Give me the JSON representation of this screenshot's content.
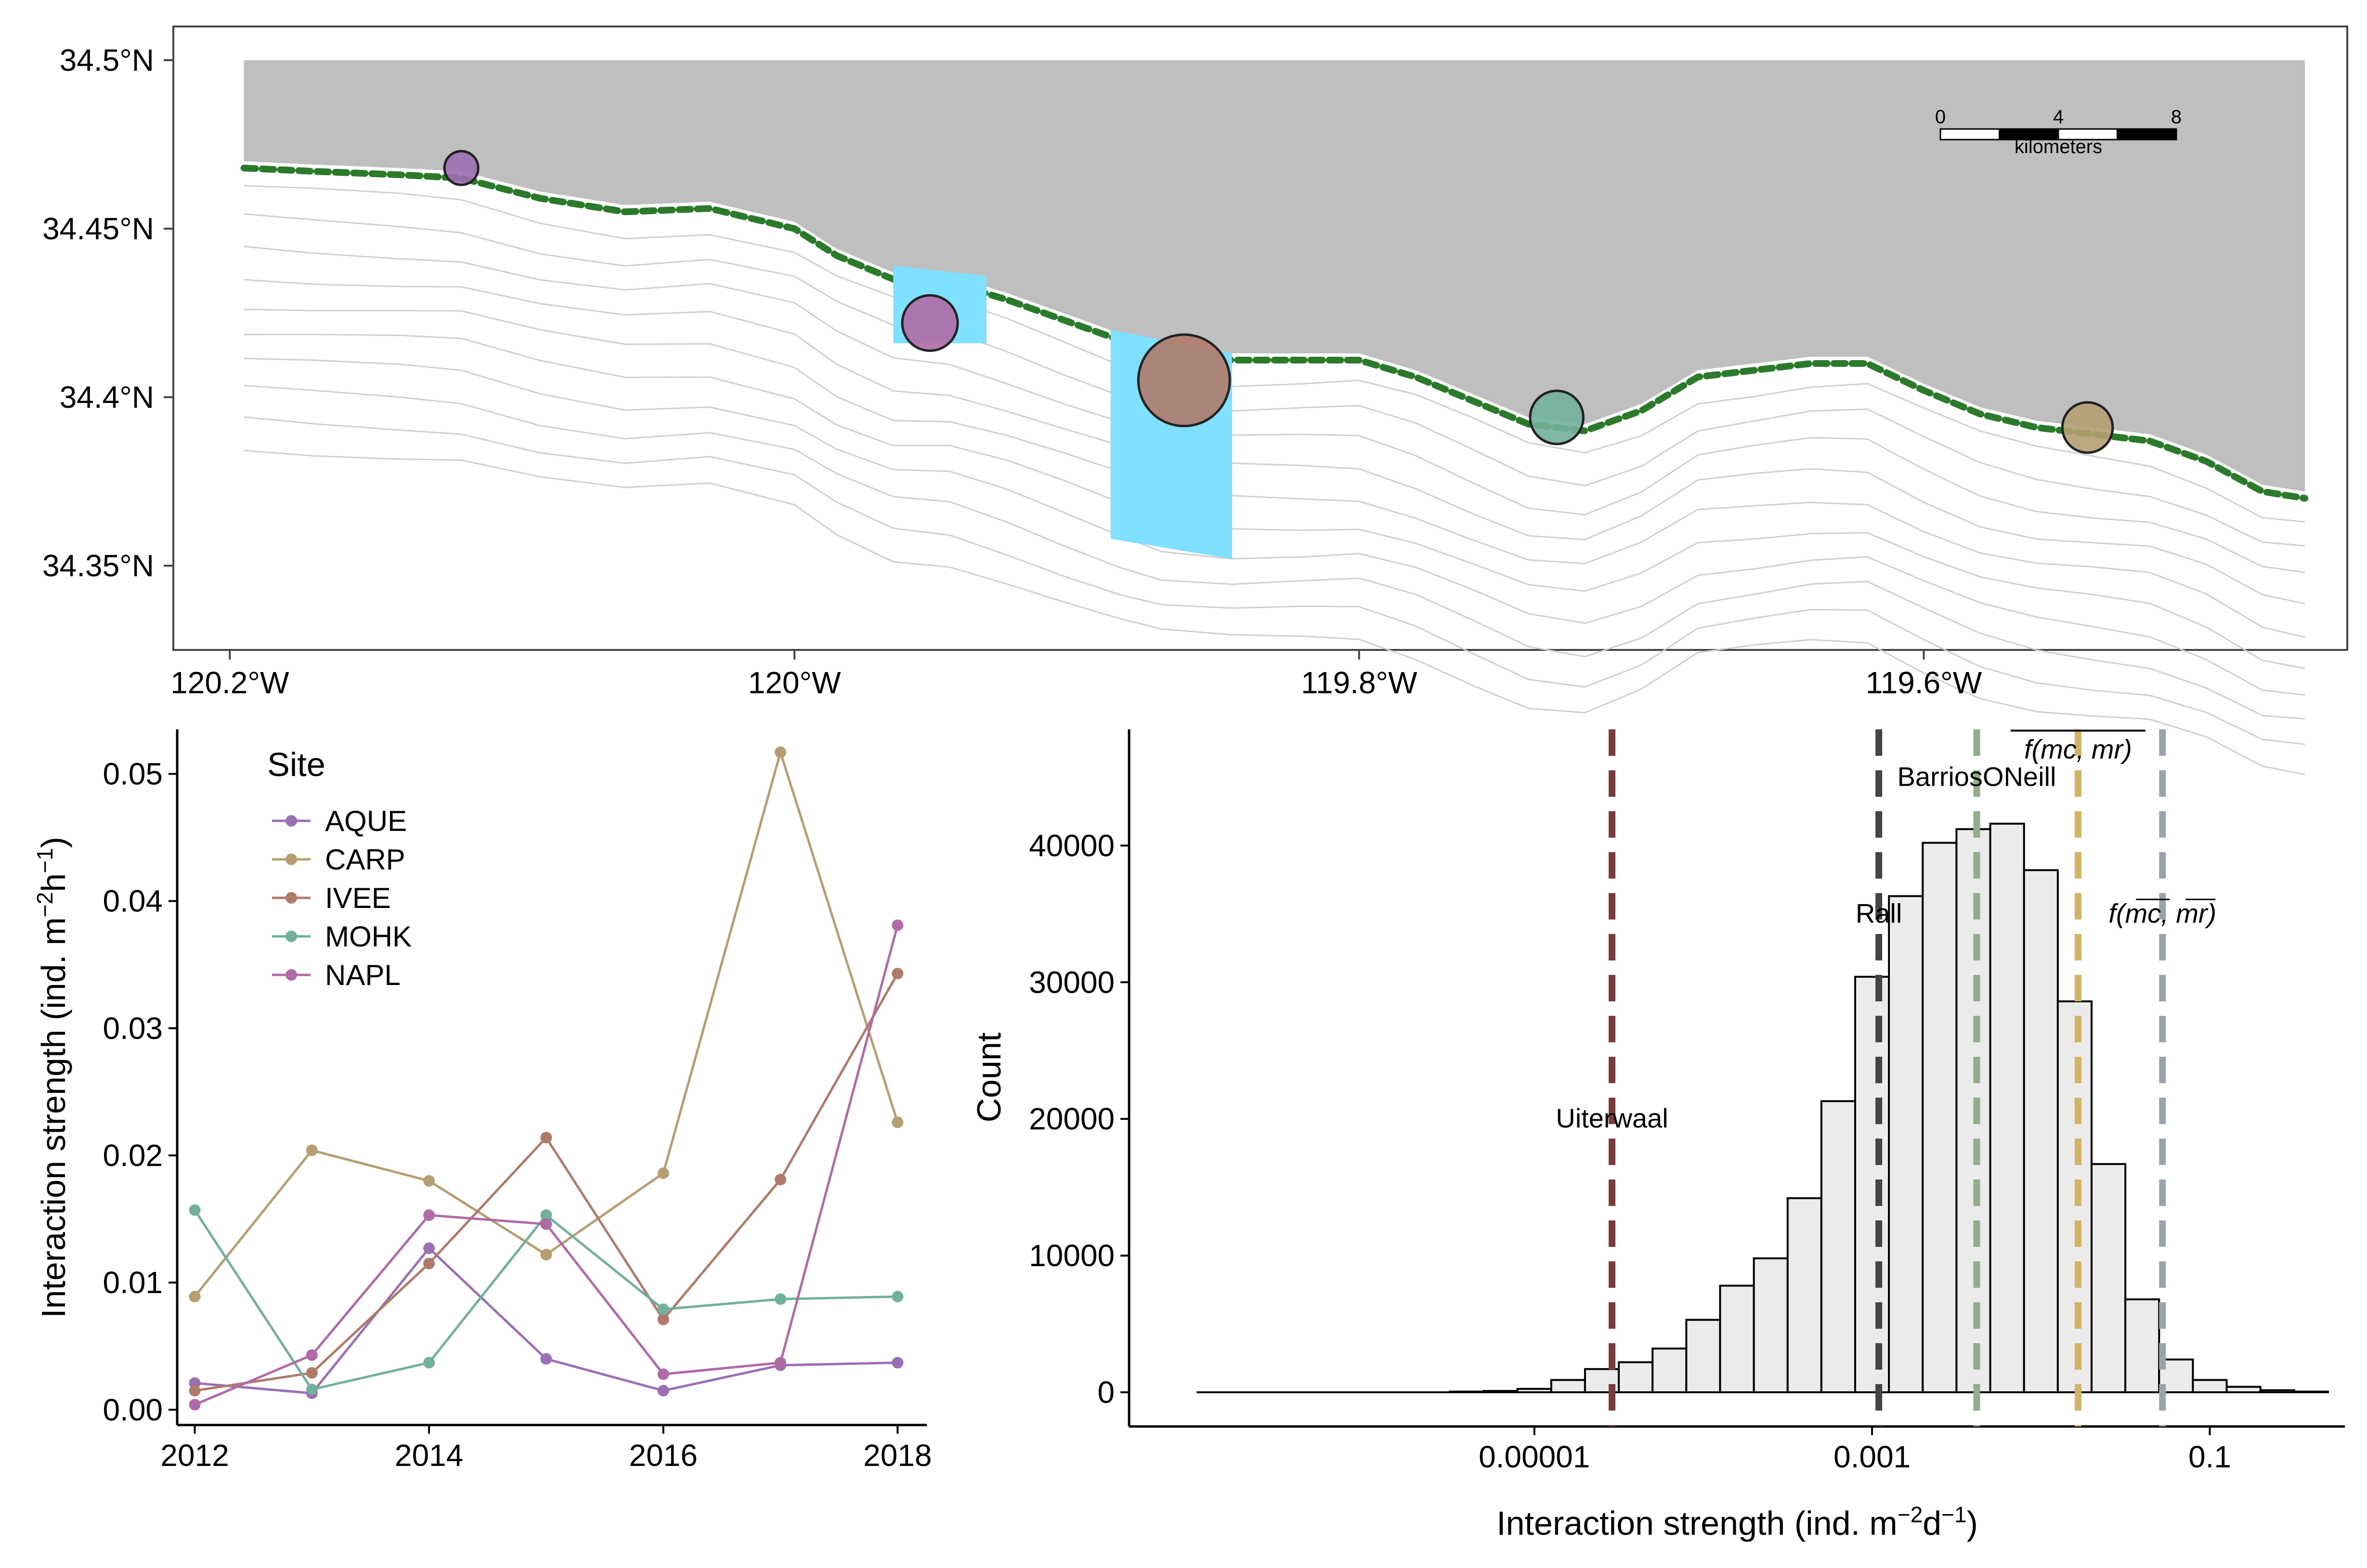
{
  "colors": {
    "AQUE": "#9b6fb3",
    "CARP": "#b59e72",
    "IVEE": "#b07a6a",
    "MOHK": "#72b09b",
    "NAPL": "#b06aa6",
    "land": "#bfbfbf",
    "kelp": "#2b7a2b",
    "survey_area": "#7fe0ff",
    "contour": "#cfcfcf",
    "hist_fill": "#ebebeb",
    "Uiterwaal": "#7a3b3b",
    "Rall": "#444444",
    "BarriosONeill": "#93ad8c",
    "f_mc_mr_mean": "#d2b463",
    "f_mean_mc_mr": "#9aa3ad"
  },
  "chart_data": [
    {
      "type": "map",
      "xlim": [
        -120.22,
        -119.45
      ],
      "ylim": [
        34.325,
        34.51
      ],
      "x_ticks": [
        -120.2,
        -120.0,
        -119.8,
        -119.6
      ],
      "x_tick_labels": [
        "120.2°W",
        "120°W",
        "119.8°W",
        "119.6°W"
      ],
      "y_ticks": [
        34.35,
        34.4,
        34.45,
        34.5
      ],
      "y_tick_labels": [
        "34.35°N",
        "34.4°N",
        "34.45°N",
        "34.5°N"
      ],
      "scale_bar": {
        "labels": [
          "0",
          "4",
          "8"
        ],
        "unit": "kilometers"
      },
      "sites": [
        {
          "site": "AQUE",
          "lon": -120.118,
          "lat": 34.468,
          "relative_size": 0.2
        },
        {
          "site": "NAPL",
          "lon": -119.952,
          "lat": 34.422,
          "relative_size": 0.5
        },
        {
          "site": "IVEE",
          "lon": -119.862,
          "lat": 34.405,
          "relative_size": 1.0
        },
        {
          "site": "MOHK",
          "lon": -119.73,
          "lat": 34.394,
          "relative_size": 0.47
        },
        {
          "site": "CARP",
          "lon": -119.542,
          "lat": 34.391,
          "relative_size": 0.43
        }
      ]
    },
    {
      "type": "line",
      "x": [
        2012,
        2013,
        2014,
        2015,
        2016,
        2017,
        2018
      ],
      "xlim": [
        2011.85,
        2018.25
      ],
      "ylim": [
        -0.0012,
        0.0535
      ],
      "x_ticks": [
        2012,
        2014,
        2016,
        2018
      ],
      "x_tick_labels": [
        "2012",
        "2014",
        "2016",
        "2018"
      ],
      "y_ticks": [
        0,
        0.01,
        0.02,
        0.03,
        0.04,
        0.05
      ],
      "y_tick_labels": [
        "0.00",
        "0.01",
        "0.02",
        "0.03",
        "0.04",
        "0.05"
      ],
      "ylabel_main": "Interaction strength (ind. m",
      "ylabel_sup1": "−2",
      "ylabel_mid": "h",
      "ylabel_sup2": "−1",
      "ylabel_end": ")",
      "legend_title": "Site",
      "series": [
        {
          "name": "AQUE",
          "values": [
            0.0021,
            0.0013,
            0.0127,
            0.004,
            0.0015,
            0.0035,
            0.0037
          ]
        },
        {
          "name": "CARP",
          "values": [
            0.0089,
            0.0204,
            0.018,
            0.0122,
            0.0186,
            0.0517,
            0.0226
          ]
        },
        {
          "name": "IVEE",
          "values": [
            0.0015,
            0.0029,
            0.0115,
            0.0214,
            0.0071,
            0.0181,
            0.0343
          ]
        },
        {
          "name": "MOHK",
          "values": [
            0.0157,
            0.0016,
            0.0037,
            0.0153,
            0.0079,
            0.0087,
            0.0089
          ]
        },
        {
          "name": "NAPL",
          "values": [
            0.0004,
            0.0043,
            0.0153,
            0.0146,
            0.0028,
            0.0037,
            0.0381
          ]
        }
      ]
    },
    {
      "type": "bar",
      "x_scale": "log10",
      "xlim_log10": [
        -7.4,
        -0.2
      ],
      "ylim": [
        -2500,
        48500
      ],
      "x_ticks_log10": [
        -5,
        -3,
        -1
      ],
      "x_tick_labels": [
        "0.00001",
        "0.001",
        "0.1"
      ],
      "y_ticks": [
        0,
        10000,
        20000,
        30000,
        40000
      ],
      "y_tick_labels": [
        "0",
        "10000",
        "20000",
        "30000",
        "40000"
      ],
      "xlabel_main": "Interaction strength (ind. m",
      "xlabel_sup1": "−2",
      "xlabel_mid": "d",
      "xlabel_sup2": "−1",
      "xlabel_end": ")",
      "ylabel": "Count",
      "bin_width_log10": 0.2,
      "bin_start_log10": [
        -6.5,
        -6.3,
        -6.1,
        -5.9,
        -5.7,
        -5.5,
        -5.3,
        -5.1,
        -4.9,
        -4.7,
        -4.5,
        -4.3,
        -4.1,
        -3.9,
        -3.7,
        -3.5,
        -3.3,
        -3.1,
        -2.9,
        -2.7,
        -2.5,
        -2.3,
        -2.1,
        -1.9,
        -1.7,
        -1.5,
        -1.3,
        -1.1,
        -0.9,
        -0.7,
        -0.5
      ],
      "counts": [
        0,
        0,
        0,
        0,
        0,
        50,
        100,
        250,
        900,
        1700,
        2200,
        3200,
        5300,
        7800,
        9800,
        14200,
        21300,
        30400,
        36300,
        40200,
        41200,
        41600,
        38200,
        28600,
        16700,
        6800,
        2400,
        900,
        400,
        150,
        50
      ],
      "reference_lines": [
        {
          "key": "Uiterwaal",
          "label": "Uiterwaal",
          "x_log10": -4.54,
          "label_count": 20000
        },
        {
          "key": "Rall",
          "label": "Rall",
          "x_log10": -2.96,
          "label_count": 35000
        },
        {
          "key": "BarriosONeill",
          "label": "BarriosONeill",
          "x_log10": -2.38,
          "label_count": 45000
        },
        {
          "key": "f_mc_mr_mean",
          "label": "f(mc, mr)",
          "overline": true,
          "x_log10": -1.78,
          "label_count": 47000
        },
        {
          "key": "f_mean_mc_mr",
          "label": "f(mc, mr)",
          "inner_overlines": true,
          "x_log10": -1.28,
          "label_count": 35000
        }
      ]
    }
  ]
}
